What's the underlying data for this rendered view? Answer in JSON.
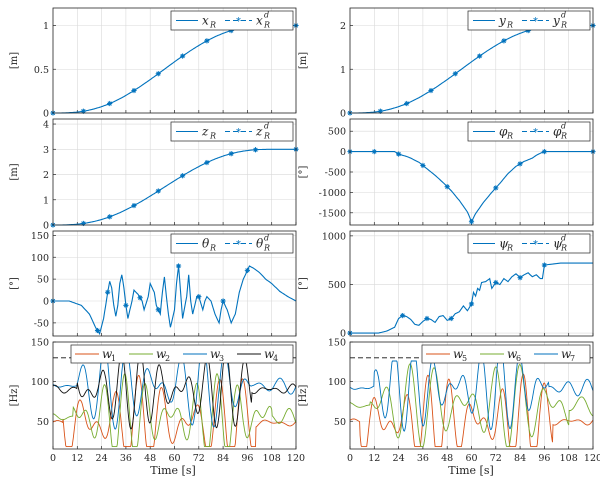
{
  "figure": {
    "colors": {
      "axis": "#262626",
      "grid": "#d9d9d9",
      "tracking": "#0072BD",
      "w_red": "#D95319",
      "w_green": "#77AC30",
      "w_blue": "#0072BD",
      "w_black": "#111111",
      "dashed": "#111111"
    },
    "x_axis": {
      "label": "Time [s]",
      "ticks": [
        "0",
        "12",
        "24",
        "36",
        "48",
        "60",
        "72",
        "84",
        "96",
        "108",
        "120"
      ]
    }
  },
  "chart_data": [
    {
      "id": "xR",
      "type": "line",
      "ylabel": "[m]",
      "ylim": [
        0,
        1.2
      ],
      "yticks": [
        {
          "v": 0,
          "t": "0"
        },
        {
          "v": 0.5,
          "t": "0.5"
        },
        {
          "v": 1,
          "t": "1"
        }
      ],
      "legend": {
        "actual": "x",
        "sub": "R",
        "sup": "d"
      },
      "kind": "scurve",
      "start": 0,
      "end": 1,
      "markers_x": [
        0,
        15,
        28,
        40,
        52,
        64,
        76,
        88,
        100,
        120
      ]
    },
    {
      "id": "yR",
      "type": "line",
      "ylabel": "[m]",
      "ylim": [
        0,
        2.4
      ],
      "yticks": [
        {
          "v": 0,
          "t": "0"
        },
        {
          "v": 1,
          "t": "1"
        },
        {
          "v": 2,
          "t": "2"
        }
      ],
      "legend": {
        "actual": "y",
        "sub": "R",
        "sup": "d"
      },
      "kind": "scurve",
      "start": 0,
      "end": 2,
      "markers_x": [
        0,
        15,
        28,
        40,
        52,
        64,
        76,
        88,
        100,
        120
      ]
    },
    {
      "id": "zR",
      "type": "line",
      "ylabel": "[m]",
      "ylim": [
        0,
        4.2
      ],
      "yticks": [
        {
          "v": 0,
          "t": "0"
        },
        {
          "v": 1,
          "t": "1"
        },
        {
          "v": 2,
          "t": "2"
        },
        {
          "v": 3,
          "t": "3"
        },
        {
          "v": 4,
          "t": "4"
        }
      ],
      "legend": {
        "actual": "z",
        "sub": "R",
        "sup": "d"
      },
      "kind": "scurve",
      "start": 0,
      "end": 3,
      "markers_x": [
        0,
        15,
        28,
        40,
        52,
        64,
        76,
        88,
        100,
        120
      ]
    },
    {
      "id": "phiR",
      "type": "line",
      "ylabel": "[°]",
      "ylim": [
        -1800,
        800
      ],
      "yticks": [
        {
          "v": 500,
          "t": "500"
        },
        {
          "v": 0,
          "t": "0"
        },
        {
          "v": -500,
          "t": "-500"
        },
        {
          "v": -1000,
          "t": "-1000"
        },
        {
          "v": -1500,
          "t": "-1500"
        }
      ],
      "legend": {
        "actual": "φ",
        "sub": "R",
        "sup": "d"
      },
      "kind": "poly",
      "points": [
        [
          0,
          0
        ],
        [
          22,
          0
        ],
        [
          24,
          -60
        ],
        [
          26,
          -90
        ],
        [
          28,
          -120
        ],
        [
          30,
          -160
        ],
        [
          34,
          -260
        ],
        [
          38,
          -420
        ],
        [
          42,
          -580
        ],
        [
          46,
          -760
        ],
        [
          50,
          -960
        ],
        [
          54,
          -1200
        ],
        [
          56,
          -1340
        ],
        [
          58,
          -1480
        ],
        [
          60,
          -1720
        ],
        [
          62,
          -1520
        ],
        [
          64,
          -1380
        ],
        [
          66,
          -1240
        ],
        [
          70,
          -1000
        ],
        [
          74,
          -780
        ],
        [
          78,
          -540
        ],
        [
          82,
          -360
        ],
        [
          86,
          -240
        ],
        [
          90,
          -160
        ],
        [
          92,
          -90
        ],
        [
          94,
          -40
        ],
        [
          96,
          0
        ],
        [
          120,
          0
        ]
      ],
      "markers_x": [
        0,
        12,
        24,
        36,
        48,
        60,
        72,
        84,
        96,
        120
      ]
    },
    {
      "id": "thetaR",
      "type": "line",
      "ylabel": "[°]",
      "ylim": [
        -80,
        160
      ],
      "yticks": [
        {
          "v": 150,
          "t": "150"
        },
        {
          "v": 100,
          "t": "100"
        },
        {
          "v": 50,
          "t": "50"
        },
        {
          "v": 0,
          "t": "0"
        },
        {
          "v": -50,
          "t": "-50"
        }
      ],
      "legend": {
        "actual": "θ",
        "sub": "R",
        "sup": "d"
      },
      "kind": "poly",
      "points": [
        [
          0,
          0
        ],
        [
          8,
          0
        ],
        [
          14,
          -10
        ],
        [
          18,
          -30
        ],
        [
          21,
          -60
        ],
        [
          23,
          -75
        ],
        [
          25,
          -40
        ],
        [
          27,
          20
        ],
        [
          28,
          45
        ],
        [
          29,
          30
        ],
        [
          30,
          -10
        ],
        [
          31,
          -35
        ],
        [
          32,
          -10
        ],
        [
          33,
          40
        ],
        [
          34,
          60
        ],
        [
          35,
          30
        ],
        [
          36,
          -10
        ],
        [
          37,
          -40
        ],
        [
          39,
          0
        ],
        [
          40,
          25
        ],
        [
          42,
          15
        ],
        [
          44,
          0
        ],
        [
          45,
          -20
        ],
        [
          47,
          10
        ],
        [
          48,
          40
        ],
        [
          50,
          20
        ],
        [
          51,
          -10
        ],
        [
          53,
          -30
        ],
        [
          54,
          20
        ],
        [
          55,
          55
        ],
        [
          56,
          10
        ],
        [
          57,
          -30
        ],
        [
          58,
          -60
        ],
        [
          60,
          -20
        ],
        [
          61,
          40
        ],
        [
          62,
          80
        ],
        [
          63,
          20
        ],
        [
          64,
          -40
        ],
        [
          66,
          10
        ],
        [
          67,
          60
        ],
        [
          68,
          0
        ],
        [
          69,
          -30
        ],
        [
          71,
          10
        ],
        [
          72,
          10
        ],
        [
          74,
          -20
        ],
        [
          75,
          0
        ],
        [
          76,
          10
        ],
        [
          78,
          0
        ],
        [
          80,
          -30
        ],
        [
          82,
          -50
        ],
        [
          83,
          -20
        ],
        [
          84,
          0
        ],
        [
          86,
          -20
        ],
        [
          88,
          -50
        ],
        [
          90,
          -30
        ],
        [
          92,
          20
        ],
        [
          94,
          50
        ],
        [
          96,
          70
        ],
        [
          97,
          80
        ],
        [
          99,
          75
        ],
        [
          102,
          65
        ],
        [
          105,
          50
        ],
        [
          108,
          40
        ],
        [
          112,
          22
        ],
        [
          116,
          10
        ],
        [
          120,
          0
        ]
      ],
      "markers_x": [
        0,
        22,
        27,
        36,
        43,
        52,
        62,
        72,
        84,
        96
      ]
    },
    {
      "id": "psiR",
      "type": "line",
      "ylabel": "[°]",
      "ylim": [
        -30,
        1050
      ],
      "yticks": [
        {
          "v": 1000,
          "t": "1000"
        },
        {
          "v": 500,
          "t": "500"
        },
        {
          "v": 0,
          "t": "0"
        }
      ],
      "legend": {
        "actual": "ψ",
        "sub": "R",
        "sup": "d"
      },
      "kind": "poly",
      "points": [
        [
          0,
          0
        ],
        [
          14,
          0
        ],
        [
          18,
          20
        ],
        [
          20,
          40
        ],
        [
          22,
          60
        ],
        [
          24,
          150
        ],
        [
          26,
          180
        ],
        [
          28,
          170
        ],
        [
          30,
          140
        ],
        [
          32,
          90
        ],
        [
          34,
          80
        ],
        [
          36,
          120
        ],
        [
          38,
          150
        ],
        [
          40,
          140
        ],
        [
          42,
          110
        ],
        [
          44,
          170
        ],
        [
          46,
          180
        ],
        [
          48,
          130
        ],
        [
          50,
          150
        ],
        [
          52,
          200
        ],
        [
          54,
          220
        ],
        [
          56,
          280
        ],
        [
          58,
          230
        ],
        [
          60,
          300
        ],
        [
          61,
          420
        ],
        [
          62,
          380
        ],
        [
          63,
          460
        ],
        [
          64,
          440
        ],
        [
          65,
          520
        ],
        [
          67,
          530
        ],
        [
          69,
          560
        ],
        [
          70,
          460
        ],
        [
          72,
          520
        ],
        [
          74,
          500
        ],
        [
          76,
          560
        ],
        [
          78,
          530
        ],
        [
          80,
          580
        ],
        [
          82,
          610
        ],
        [
          84,
          570
        ],
        [
          86,
          600
        ],
        [
          88,
          620
        ],
        [
          90,
          580
        ],
        [
          92,
          600
        ],
        [
          94,
          560
        ],
        [
          95,
          560
        ],
        [
          96,
          700
        ],
        [
          100,
          710
        ],
        [
          104,
          720
        ],
        [
          120,
          720
        ]
      ],
      "markers_x": [
        0,
        26,
        38,
        50,
        60,
        72,
        84,
        96
      ]
    },
    {
      "id": "w_left",
      "type": "line",
      "ylabel": "[Hz]",
      "ylim": [
        15,
        150
      ],
      "yticks": [
        {
          "v": 150,
          "t": "150"
        },
        {
          "v": 100,
          "t": "100"
        },
        {
          "v": 50,
          "t": "50"
        }
      ],
      "dashed": 130,
      "legend_w": [
        "w",
        "w",
        "w",
        "w"
      ],
      "legend_w_sub": [
        "1",
        "2",
        "3",
        "4"
      ],
      "series": [
        {
          "name_sub": "1",
          "color_key": "w_red",
          "base": 48,
          "amp": 60,
          "freq": 0.55,
          "phase": 0.3,
          "env": "early"
        },
        {
          "name_sub": "2",
          "color_key": "w_green",
          "base": 55,
          "amp": 55,
          "freq": 0.62,
          "phase": 1.6,
          "env": "late"
        },
        {
          "name_sub": "3",
          "color_key": "w_blue",
          "base": 95,
          "amp": 55,
          "freq": 0.58,
          "phase": 2.6,
          "env": "mid"
        },
        {
          "name_sub": "4",
          "color_key": "w_black",
          "base": 90,
          "amp": 50,
          "freq": 0.67,
          "phase": 0.9,
          "env": "mid"
        }
      ]
    },
    {
      "id": "w_right",
      "type": "line",
      "ylabel": "[Hz]",
      "ylim": [
        15,
        150
      ],
      "yticks": [
        {
          "v": 150,
          "t": "150"
        },
        {
          "v": 100,
          "t": "100"
        },
        {
          "v": 50,
          "t": "50"
        }
      ],
      "dashed": 130,
      "legend_w": [
        "w",
        "w",
        "w"
      ],
      "legend_w_sub": [
        "5",
        "6",
        "7"
      ],
      "series": [
        {
          "name_sub": "5",
          "color_key": "w_red",
          "base": 50,
          "amp": 60,
          "freq": 0.6,
          "phase": 0.5,
          "env": "early"
        },
        {
          "name_sub": "6",
          "color_key": "w_green",
          "base": 70,
          "amp": 55,
          "freq": 0.52,
          "phase": 1.9,
          "env": "late"
        },
        {
          "name_sub": "7",
          "color_key": "w_blue",
          "base": 92,
          "amp": 55,
          "freq": 0.66,
          "phase": 2.8,
          "env": "mid"
        }
      ]
    }
  ]
}
